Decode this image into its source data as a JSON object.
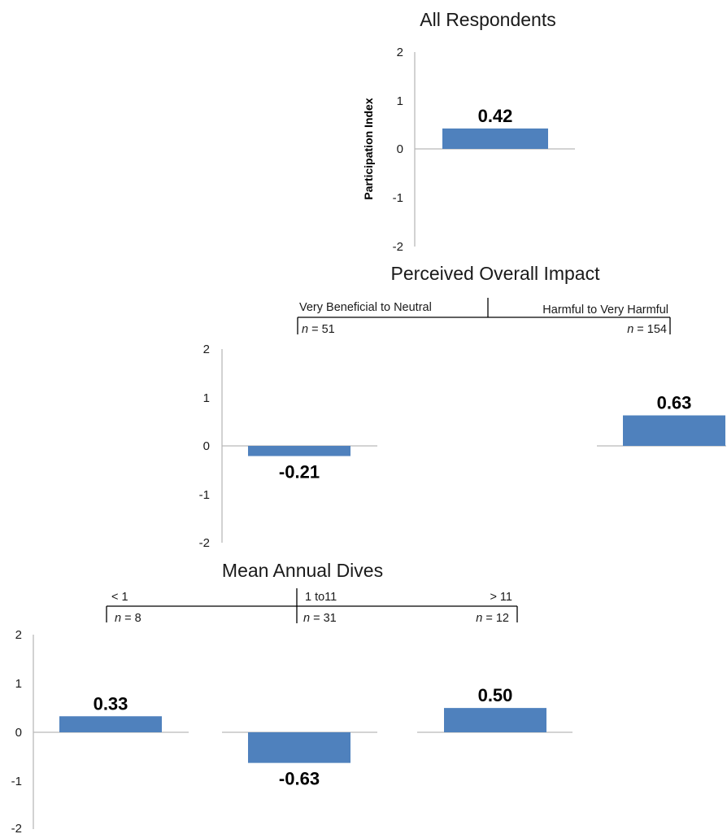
{
  "chart_data": [
    {
      "type": "bar",
      "title": "All Respondents",
      "ylabel": "Participation Index",
      "ylim": [
        -2,
        2
      ],
      "yticks": [
        "2",
        "1",
        "0",
        "-1",
        "-2"
      ],
      "categories": [
        ""
      ],
      "values": [
        0.42
      ],
      "value_labels": [
        "0.42"
      ],
      "bar_color": "#4f81bd"
    },
    {
      "type": "bar",
      "title": "Perceived Overall Impact",
      "ylim": [
        -2,
        2
      ],
      "yticks": [
        "2",
        "1",
        "0",
        "-1",
        "-2"
      ],
      "categories": [
        "Very Beneficial to Neutral",
        "Harmful to Very Harmful"
      ],
      "n_labels": [
        {
          "prefix": "n",
          "suffix": " = 51"
        },
        {
          "prefix": "n",
          "suffix": " = 154"
        }
      ],
      "values": [
        -0.21,
        0.63
      ],
      "value_labels": [
        "-0.21",
        "0.63"
      ],
      "bar_color": "#4f81bd"
    },
    {
      "type": "bar",
      "title": "Mean Annual Dives",
      "ylim": [
        -2,
        2
      ],
      "yticks": [
        "2",
        "1",
        "0",
        "-1",
        "-2"
      ],
      "categories": [
        "< 1",
        "1 to11",
        "> 11"
      ],
      "n_labels": [
        {
          "prefix": "n",
          "suffix": " = 8"
        },
        {
          "prefix": "n",
          "suffix": " = 31"
        },
        {
          "prefix": "n",
          "suffix": " = 12"
        }
      ],
      "values": [
        0.33,
        -0.63,
        0.5
      ],
      "value_labels": [
        "0.33",
        "-0.63",
        "0.50"
      ],
      "bar_color": "#4f81bd"
    }
  ]
}
